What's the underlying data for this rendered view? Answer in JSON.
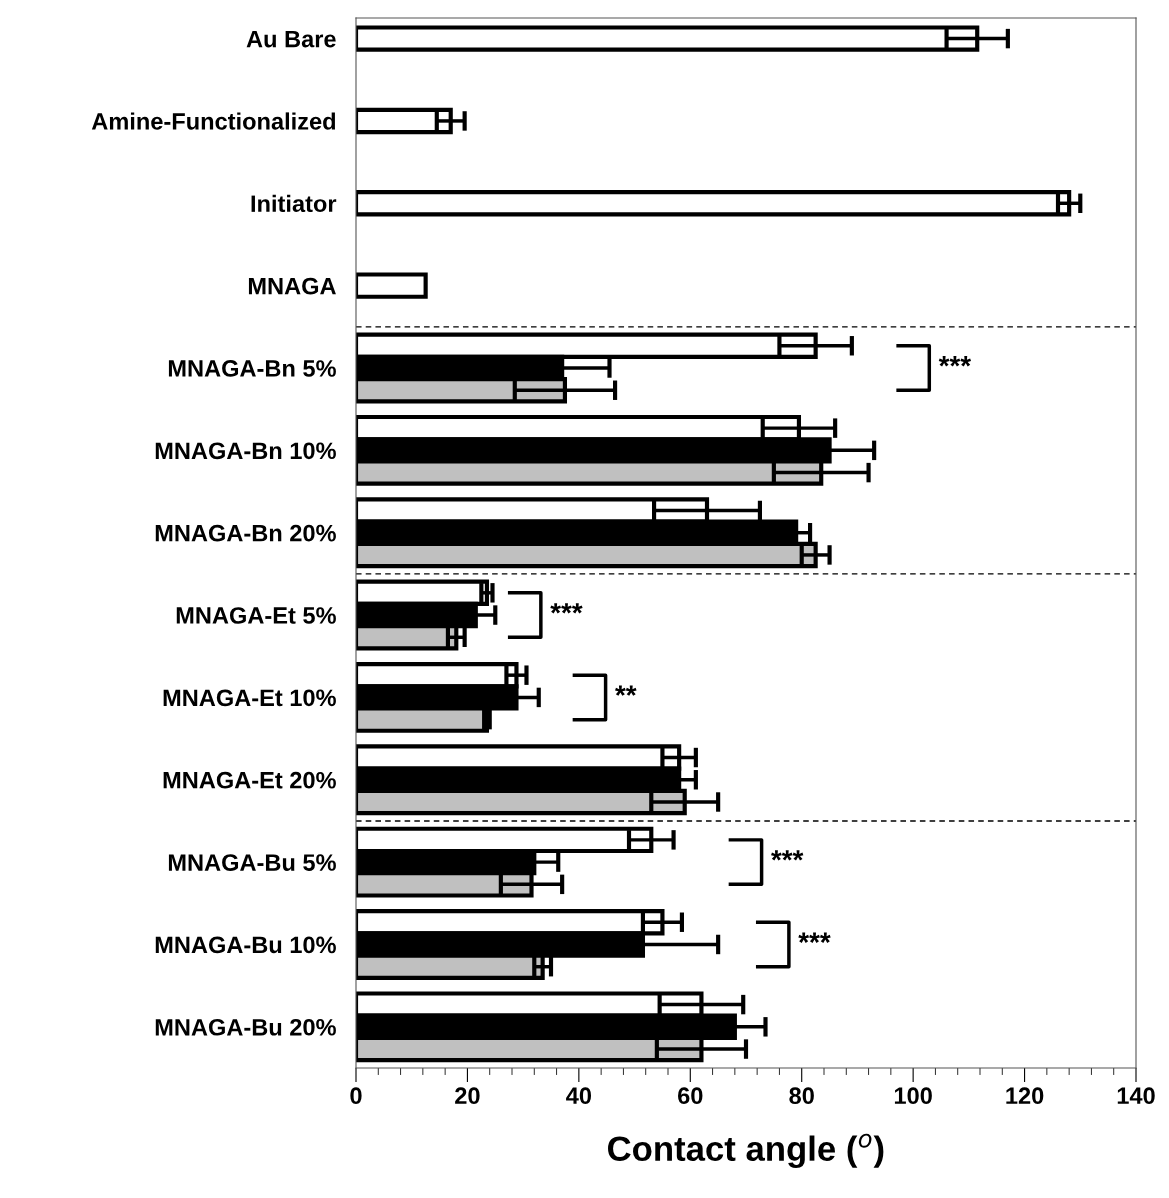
{
  "chart_data": {
    "type": "bar",
    "orientation": "horizontal",
    "xlabel": "Contact angle ($^{o}$)",
    "categories": [
      "Au Bare",
      "Amine-Functionalized",
      "Initiator",
      "MNAGA",
      "MNAGA-Bn 5%",
      "MNAGA-Bn 10%",
      "MNAGA-Bn 20%",
      "MNAGA-Et 5%",
      "MNAGA-Et 10%",
      "MNAGA-Et 20%",
      "MNAGA-Bu 5%",
      "MNAGA-Bu 10%",
      "MNAGA-Bu 20%"
    ],
    "series": [
      {
        "color": "#ffffff",
        "values": [
          111.5,
          17,
          128,
          12.5,
          82.5,
          79.5,
          63,
          23.5,
          28.8,
          58,
          53,
          55,
          62
        ],
        "errors": [
          5.5,
          2.5,
          2,
          null,
          6.5,
          6.5,
          9.5,
          1,
          1.8,
          3,
          4,
          3.5,
          7.5
        ]
      },
      {
        "color": "#000000",
        "values": [
          null,
          null,
          null,
          null,
          37,
          85,
          79,
          21.5,
          28.8,
          58,
          32,
          51.5,
          68
        ],
        "errors": [
          null,
          null,
          null,
          null,
          8.5,
          8,
          2.5,
          3.5,
          4,
          3,
          4.3,
          13.5,
          5.5
        ]
      },
      {
        "color": "#c0c0c0",
        "values": [
          null,
          null,
          null,
          null,
          37.5,
          83.5,
          82.5,
          18,
          23.5,
          59,
          31.5,
          33.5,
          62
        ],
        "errors": [
          null,
          null,
          null,
          null,
          9,
          8.5,
          2.5,
          1.5,
          0.5,
          6,
          5.5,
          1.5,
          8
        ]
      }
    ],
    "xlim": [
      0,
      140
    ],
    "xticks": [
      0,
      20,
      40,
      60,
      80,
      100,
      120,
      140
    ],
    "grid": false,
    "legend": false,
    "annotations": [
      "***",
      "***",
      "**",
      "***",
      "***"
    ]
  }
}
